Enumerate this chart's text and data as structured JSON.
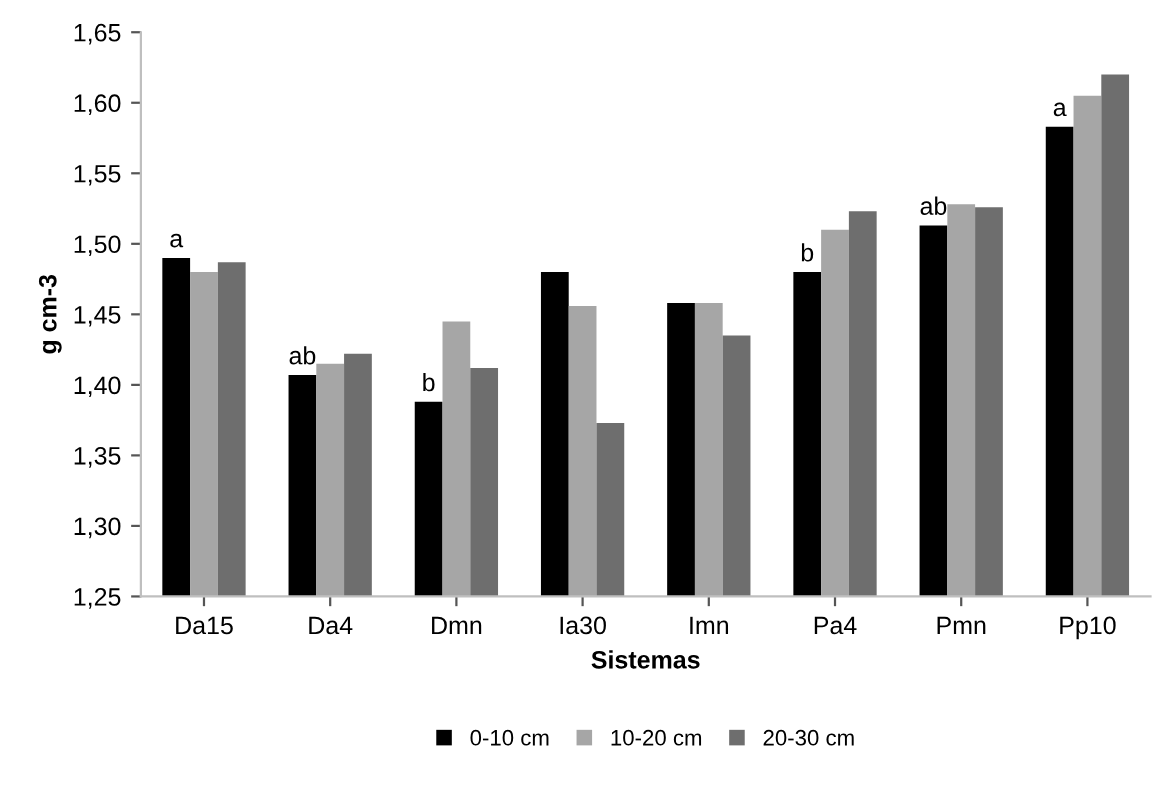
{
  "chart_data": {
    "type": "bar",
    "xlabel": "Sistemas",
    "ylabel": "g cm-3",
    "categories": [
      "Da15",
      "Da4",
      "Dmn",
      "Ia30",
      "Imn",
      "Pa4",
      "Pmn",
      "Pp10"
    ],
    "series": [
      {
        "name": "0-10 cm",
        "color": "#000000",
        "values": [
          1.49,
          1.407,
          1.388,
          1.48,
          1.458,
          1.48,
          1.513,
          1.583
        ],
        "value_labels": [
          "a",
          "ab",
          "b",
          null,
          null,
          "b",
          "ab",
          "a"
        ]
      },
      {
        "name": "10-20 cm",
        "color": "#a6a6a6",
        "values": [
          1.48,
          1.415,
          1.445,
          1.456,
          1.458,
          1.51,
          1.528,
          1.605
        ]
      },
      {
        "name": "20-30 cm",
        "color": "#6e6e6e",
        "values": [
          1.487,
          1.422,
          1.412,
          1.373,
          1.435,
          1.523,
          1.526,
          1.62
        ]
      }
    ],
    "ylim": [
      1.25,
      1.65
    ],
    "yticks": [
      {
        "value": 1.25,
        "label": "1,25"
      },
      {
        "value": 1.3,
        "label": "1,30"
      },
      {
        "value": 1.35,
        "label": "1,35"
      },
      {
        "value": 1.4,
        "label": "1,40"
      },
      {
        "value": 1.45,
        "label": "1,45"
      },
      {
        "value": 1.5,
        "label": "1,50"
      },
      {
        "value": 1.55,
        "label": "1,55"
      },
      {
        "value": 1.6,
        "label": "1,60"
      },
      {
        "value": 1.65,
        "label": "1,65"
      }
    ],
    "grid": false,
    "legend": "bottom"
  }
}
